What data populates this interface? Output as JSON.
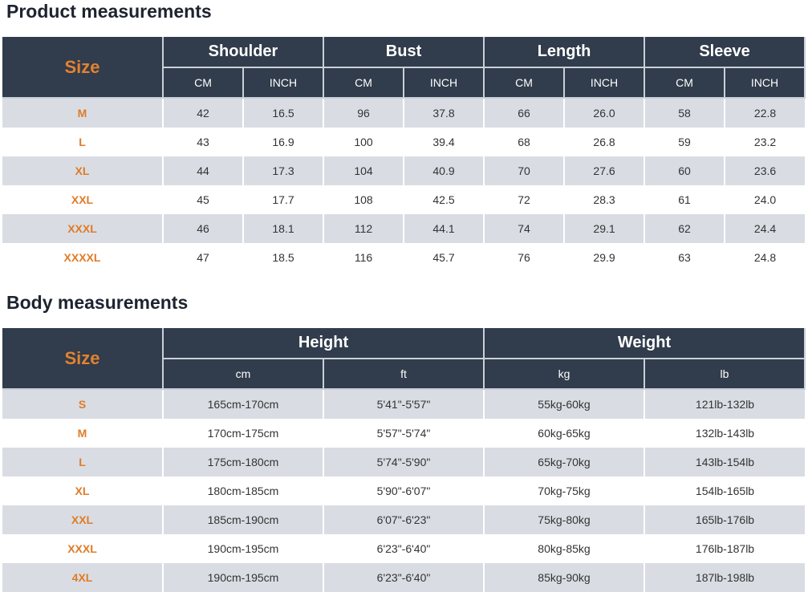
{
  "product": {
    "title": "Product measurements",
    "size_label": "Size",
    "groups": [
      "Shoulder",
      "Bust",
      "Length",
      "Sleeve"
    ],
    "units": [
      "CM",
      "INCH"
    ],
    "rows": [
      [
        "M",
        "42",
        "16.5",
        "96",
        "37.8",
        "66",
        "26.0",
        "58",
        "22.8"
      ],
      [
        "L",
        "43",
        "16.9",
        "100",
        "39.4",
        "68",
        "26.8",
        "59",
        "23.2"
      ],
      [
        "XL",
        "44",
        "17.3",
        "104",
        "40.9",
        "70",
        "27.6",
        "60",
        "23.6"
      ],
      [
        "XXL",
        "45",
        "17.7",
        "108",
        "42.5",
        "72",
        "28.3",
        "61",
        "24.0"
      ],
      [
        "XXXL",
        "46",
        "18.1",
        "112",
        "44.1",
        "74",
        "29.1",
        "62",
        "24.4"
      ],
      [
        "XXXXL",
        "47",
        "18.5",
        "116",
        "45.7",
        "76",
        "29.9",
        "63",
        "24.8"
      ]
    ]
  },
  "body": {
    "title": "Body measurements",
    "size_label": "Size",
    "groups": [
      "Height",
      "Weight"
    ],
    "units": [
      "cm",
      "ft",
      "kg",
      "lb"
    ],
    "rows": [
      [
        "S",
        "165cm-170cm",
        "5'41\"-5'57\"",
        "55kg-60kg",
        "121lb-132lb"
      ],
      [
        "M",
        "170cm-175cm",
        "5'57\"-5'74\"",
        "60kg-65kg",
        "132lb-143lb"
      ],
      [
        "L",
        "175cm-180cm",
        "5'74\"-5'90\"",
        "65kg-70kg",
        "143lb-154lb"
      ],
      [
        "XL",
        "180cm-185cm",
        "5'90\"-6'07\"",
        "70kg-75kg",
        "154lb-165lb"
      ],
      [
        "XXL",
        "185cm-190cm",
        "6'07\"-6'23\"",
        "75kg-80kg",
        "165lb-176lb"
      ],
      [
        "XXXL",
        "190cm-195cm",
        "6'23\"-6'40\"",
        "80kg-85kg",
        "176lb-187lb"
      ],
      [
        "4XL",
        "190cm-195cm",
        "6'23\"-6'40\"",
        "85kg-90kg",
        "187lb-198lb"
      ]
    ]
  },
  "colors": {
    "header": "#313c4c",
    "size_accent": "#e07b27",
    "stripe": "#d9dde3"
  }
}
